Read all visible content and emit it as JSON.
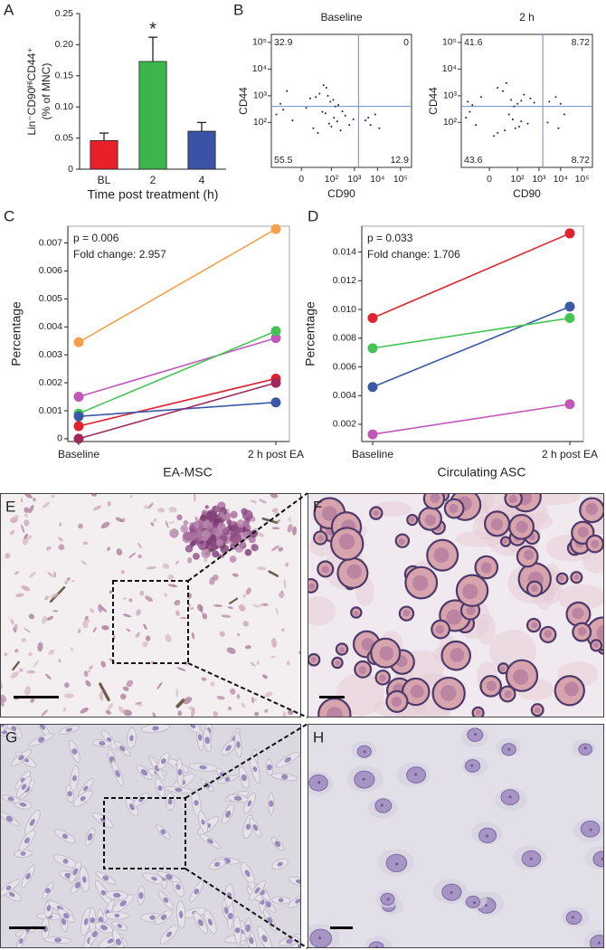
{
  "chart_data": [
    {
      "type": "bar",
      "panel": "A",
      "categories": [
        "BL",
        "2",
        "4"
      ],
      "values": [
        0.046,
        0.173,
        0.061
      ],
      "errors": [
        0.012,
        0.039,
        0.014
      ],
      "colors": [
        "#e8202a",
        "#3cb54a",
        "#3a53a4"
      ],
      "ylim": [
        0,
        0.25
      ],
      "yticks": [
        0,
        0.05,
        {
          "value": 0.1,
          "label": "0.10"
        },
        0.15,
        {
          "value": 0.2,
          "label": "0.20"
        },
        0.25
      ],
      "ylabel": [
        "Lin⁻CD90ᴴⁱCD44⁺",
        "(% of MNC)"
      ],
      "xlabel": "Time post treatment (h)",
      "annotation": "*"
    },
    {
      "type": "scatter",
      "panel": "B",
      "title": "Baseline",
      "xlabel": "CD90",
      "ylabel": "CD44",
      "xscale": "logicle",
      "yscale": "logicle",
      "x": [
        -40,
        10,
        30,
        60,
        90,
        150,
        -20,
        20,
        45,
        120,
        200,
        5,
        70,
        -60,
        -10,
        15,
        40,
        80,
        130,
        250,
        400,
        600,
        900,
        -30,
        25,
        55,
        100,
        180,
        300,
        3000,
        5000,
        8000,
        12000,
        4000
      ],
      "y": [
        500,
        800,
        1200,
        2000,
        600,
        400,
        1500,
        900,
        2500,
        700,
        450,
        350,
        1000,
        200,
        120,
        60,
        250,
        90,
        150,
        50,
        180,
        80,
        130,
        300,
        40,
        220,
        70,
        110,
        260,
        120,
        80,
        200,
        60,
        150
      ],
      "xlim": [
        -100,
        300000
      ],
      "ylim": [
        -10,
        200000
      ],
      "xticks": [
        0,
        {
          "value": 100,
          "label": "10²"
        },
        {
          "value": 1000,
          "label": "10³"
        },
        {
          "value": 10000,
          "label": "10⁴"
        },
        {
          "value": 100000,
          "label": "10⁵"
        }
      ],
      "yticks": [
        {
          "value": 100,
          "label": "10²"
        },
        {
          "value": 1000,
          "label": "10³"
        },
        {
          "value": 10000,
          "label": "10⁴"
        },
        {
          "value": 100000,
          "label": "10⁵"
        }
      ],
      "gates": {
        "x": 1500,
        "y": 400
      },
      "quadrants": {
        "upper_left": 32.9,
        "upper_right": 0,
        "lower_left": 55.5,
        "lower_right": 12.9
      }
    },
    {
      "type": "scatter",
      "title": "2 h",
      "xlabel": "CD90",
      "ylabel": "CD44",
      "xscale": "logicle",
      "yscale": "logicle",
      "x": [
        -50,
        -10,
        20,
        50,
        100,
        200,
        400,
        10,
        70,
        150,
        30,
        -30,
        600,
        -60,
        -20,
        10,
        40,
        80,
        150,
        300,
        -40,
        25,
        60,
        120,
        5,
        3000,
        6000,
        10000,
        2500,
        8000,
        15000
      ],
      "y": [
        600,
        900,
        1500,
        700,
        500,
        1100,
        800,
        2000,
        400,
        650,
        3000,
        450,
        550,
        150,
        80,
        40,
        200,
        60,
        110,
        90,
        250,
        50,
        130,
        70,
        30,
        600,
        900,
        500,
        100,
        60,
        200
      ],
      "xlim": [
        -100,
        300000
      ],
      "ylim": [
        -10,
        200000
      ],
      "xticks": [
        0,
        {
          "value": 100,
          "label": "10²"
        },
        {
          "value": 1000,
          "label": "10³"
        },
        {
          "value": 10000,
          "label": "10⁴"
        },
        {
          "value": 100000,
          "label": "10⁵"
        }
      ],
      "yticks": [
        {
          "value": 100,
          "label": "10²"
        },
        {
          "value": 1000,
          "label": "10³"
        },
        {
          "value": 10000,
          "label": "10⁴"
        },
        {
          "value": 100000,
          "label": "10⁵"
        }
      ],
      "gates": {
        "x": 1500,
        "y": 400
      },
      "quadrants": {
        "upper_left": 41.6,
        "upper_right": 8.72,
        "lower_left": 43.6,
        "lower_right": 8.72
      }
    },
    {
      "type": "line",
      "panel": "C",
      "categories": [
        "Baseline",
        "2 h post EA"
      ],
      "xlabel": "EA-MSC",
      "ylabel": "Percentage",
      "annotations": [
        "p = 0.006",
        "Fold change: 2.957"
      ],
      "ylim": [
        -0.0001,
        0.0076
      ],
      "yticks": [
        0,
        0.001,
        0.002,
        0.003,
        0.004,
        0.005,
        0.006,
        0.007
      ],
      "series": [
        {
          "color": "#f7a04b",
          "values": [
            0.00345,
            0.0075
          ]
        },
        {
          "color": "#c158b9",
          "values": [
            0.0015,
            0.0036
          ]
        },
        {
          "color": "#45c455",
          "values": [
            0.0009,
            0.00385
          ]
        },
        {
          "color": "#e0222e",
          "values": [
            0.00045,
            0.00215
          ]
        },
        {
          "color": "#3b58a6",
          "values": [
            0.0008,
            0.0013
          ]
        },
        {
          "color": "#a0285e",
          "values": [
            0.0,
            0.002
          ]
        }
      ]
    },
    {
      "type": "line",
      "panel": "D",
      "categories": [
        "Baseline",
        "2 h post EA"
      ],
      "xlabel": "Circulating ASC",
      "ylabel": "Percentage",
      "annotations": [
        "p = 0.033",
        "Fold change: 1.706"
      ],
      "ylim": [
        0.0008,
        0.0158
      ],
      "yticks": [
        0.002,
        0.004,
        0.006,
        0.008,
        {
          "value": 0.01,
          "label": "0.010"
        },
        0.012,
        0.014
      ],
      "series": [
        {
          "color": "#e0222e",
          "values": [
            0.0094,
            0.0153
          ]
        },
        {
          "color": "#3b58a6",
          "values": [
            0.0046,
            0.0102
          ]
        },
        {
          "color": "#45c455",
          "values": [
            0.0073,
            0.0094
          ]
        },
        {
          "color": "#c158b9",
          "values": [
            0.0013,
            0.0034
          ]
        }
      ]
    }
  ],
  "images": [
    {
      "label": "E"
    },
    {
      "label": "F"
    },
    {
      "label": "G"
    },
    {
      "label": "H"
    }
  ]
}
